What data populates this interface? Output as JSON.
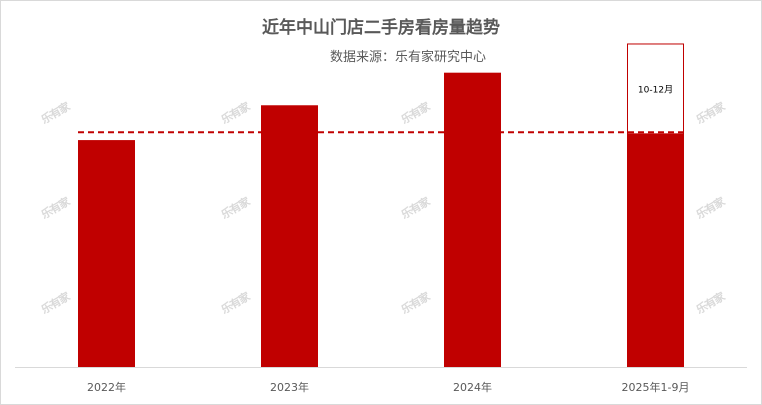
{
  "chart_data": {
    "type": "bar",
    "title": "近年中山门店二手房看房量趋势",
    "subtitle": "数据来源：乐有家研究中心",
    "categories": [
      "2022年",
      "2023年",
      "2024年",
      "2025年1-9月"
    ],
    "values": [
      202,
      233,
      262,
      208
    ],
    "projection": {
      "category": "2025年1-9月",
      "label": "10-12月",
      "value": 80
    },
    "reference_line": {
      "value": 209,
      "style": "dashed"
    },
    "colors": {
      "bar": "#c00000",
      "reference": "#c00000",
      "projection_border": "#c00000"
    },
    "ylim": [
      0,
      300
    ],
    "grid": false,
    "watermark": "乐有家"
  }
}
